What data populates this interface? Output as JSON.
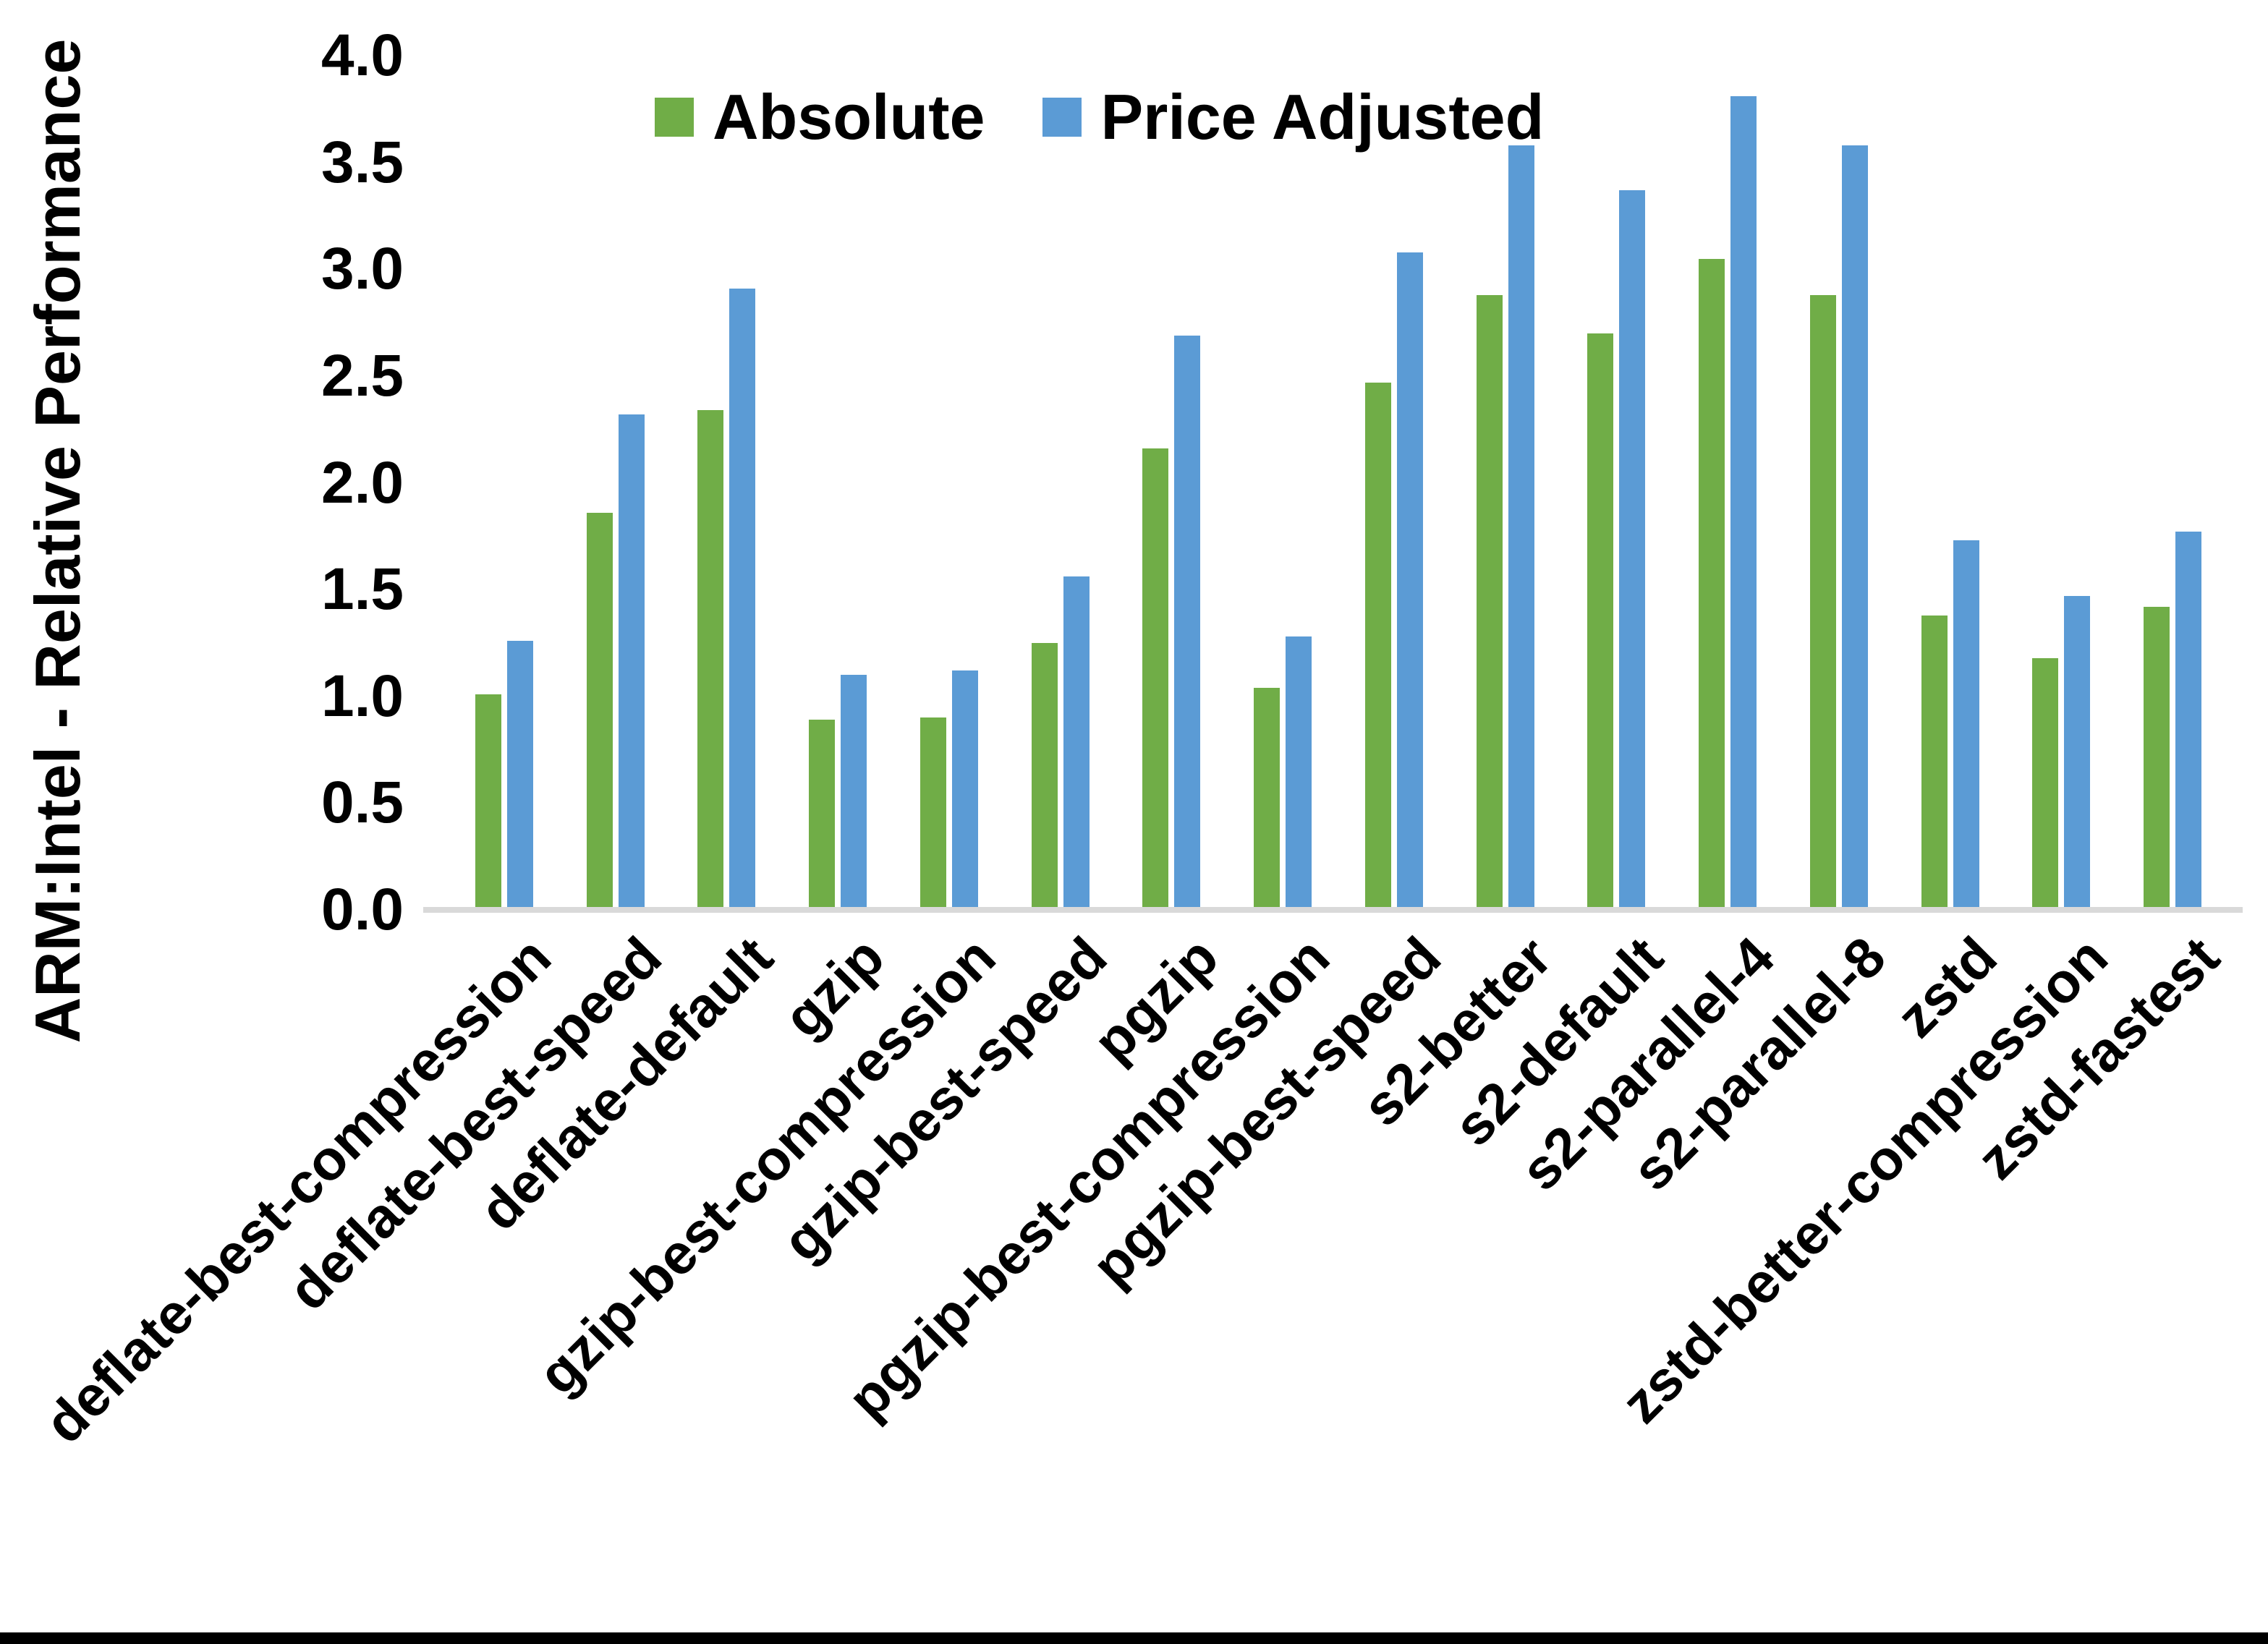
{
  "chart_data": {
    "type": "bar",
    "title": "",
    "ylabel": "ARM:Intel - Relative Performance",
    "xlabel": "",
    "ylim": [
      0.0,
      4.0
    ],
    "ytick_step": 0.5,
    "yticks": [
      "0.0",
      "0.5",
      "1.0",
      "1.5",
      "2.0",
      "2.5",
      "3.0",
      "3.5",
      "4.0"
    ],
    "grid": false,
    "legend_position": "top-center",
    "categories": [
      "deflate-best-compression",
      "deflate-best-speed",
      "deflate-default",
      "gzip",
      "gzip-best-compression",
      "gzip-best-speed",
      "pgzip",
      "pgzip-best-compression",
      "pgzip-best-speed",
      "s2-better",
      "s2-default",
      "s2-parallel-4",
      "s2-parallel-8",
      "zstd",
      "zstd-better-compression",
      "zstd-fastest"
    ],
    "series": [
      {
        "name": "Absolute",
        "color": "#70AD47",
        "values": [
          1.01,
          1.86,
          2.34,
          0.89,
          0.9,
          1.25,
          2.16,
          1.04,
          2.47,
          2.88,
          2.7,
          3.05,
          2.88,
          1.38,
          1.18,
          1.42
        ]
      },
      {
        "name": "Price Adjusted",
        "color": "#5B9BD5",
        "values": [
          1.26,
          2.32,
          2.91,
          1.1,
          1.12,
          1.56,
          2.69,
          1.28,
          3.08,
          3.58,
          3.37,
          3.81,
          3.58,
          1.73,
          1.47,
          1.77
        ]
      }
    ]
  },
  "colors": {
    "background": "#FFFFFF",
    "text": "#000000",
    "axis_line": "#D9D9D9",
    "bottom_border": "#000000"
  }
}
